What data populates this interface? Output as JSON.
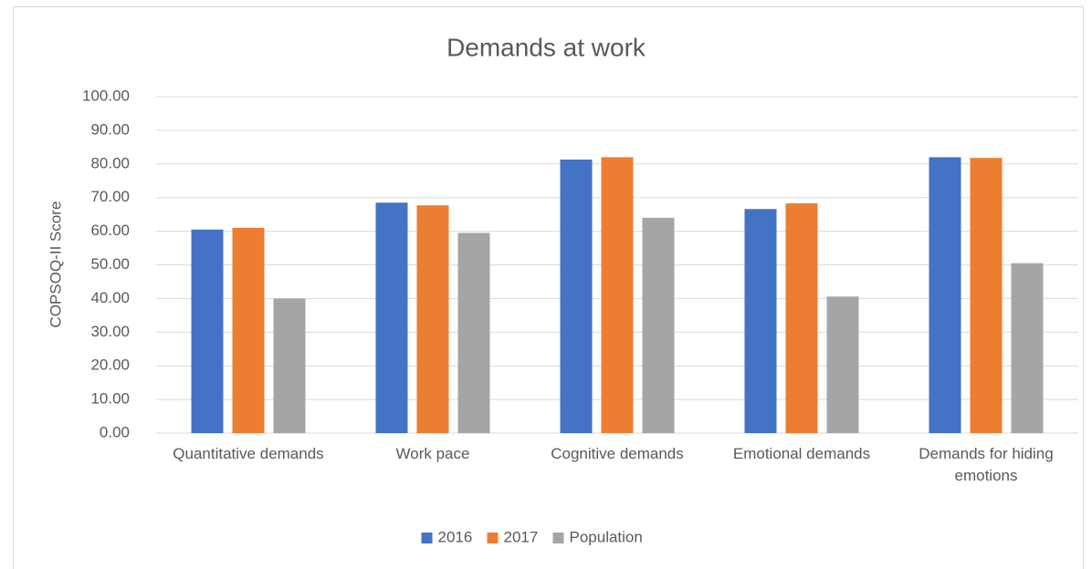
{
  "chart_data": {
    "type": "bar",
    "title": "Demands at work",
    "y_label": "COPSOQ-II Score",
    "categories": [
      "Quantitative demands",
      "Work pace",
      "Cognitive demands",
      "Emotional demands",
      "Demands for hiding emotions"
    ],
    "series": [
      {
        "name": "2016",
        "color": "#4472c4",
        "values": [
          60.5,
          68.5,
          81.3,
          66.6,
          82.0
        ]
      },
      {
        "name": "2017",
        "color": "#ed7d31",
        "values": [
          61.0,
          67.7,
          82.0,
          68.3,
          81.8
        ]
      },
      {
        "name": "Population",
        "color": "#a5a5a5",
        "values": [
          40.0,
          59.5,
          64.0,
          40.6,
          50.5
        ]
      }
    ],
    "ylim": [
      0,
      100
    ],
    "yticks": [
      {
        "value": 0,
        "label": "0.00"
      },
      {
        "value": 10,
        "label": "10.00"
      },
      {
        "value": 20,
        "label": "20.00"
      },
      {
        "value": 30,
        "label": "30.00"
      },
      {
        "value": 40,
        "label": "40.00"
      },
      {
        "value": 50,
        "label": "50.00"
      },
      {
        "value": 60,
        "label": "60.00"
      },
      {
        "value": 70,
        "label": "70.00"
      },
      {
        "value": 80,
        "label": "80.00"
      },
      {
        "value": 90,
        "label": "90.00"
      },
      {
        "value": 100,
        "label": "100.00"
      }
    ],
    "grid": true,
    "legend": "bottom"
  }
}
